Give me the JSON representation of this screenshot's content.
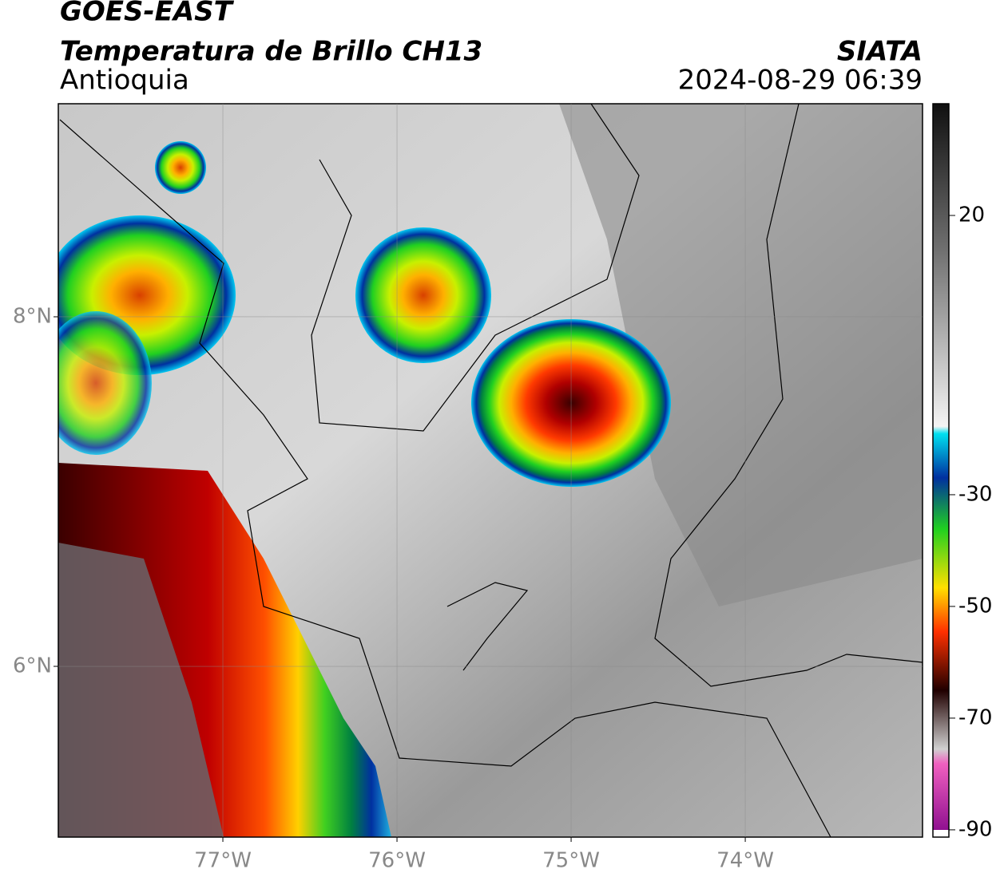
{
  "header": {
    "title": "GOES-EAST",
    "subtitle": "Temperatura de Brillo CH13",
    "region": "Antioquia",
    "source": "SIATA",
    "datetime": "2024-08-29 06:39"
  },
  "map": {
    "xlim": [
      -77.945,
      -72.982
    ],
    "ylim": [
      5.023,
      9.219
    ],
    "xticks": [
      {
        "value": -77,
        "label": "77°W"
      },
      {
        "value": -76,
        "label": "76°W"
      },
      {
        "value": -75,
        "label": "75°W"
      },
      {
        "value": -74,
        "label": "74°W"
      }
    ],
    "yticks": [
      {
        "value": 8,
        "label": "8°N"
      },
      {
        "value": 6,
        "label": "6°N"
      }
    ],
    "grid": true
  },
  "colorbar": {
    "lim": [
      -91.3,
      40
    ],
    "ticks": [
      20,
      -30,
      -50,
      -70,
      -90
    ]
  }
}
